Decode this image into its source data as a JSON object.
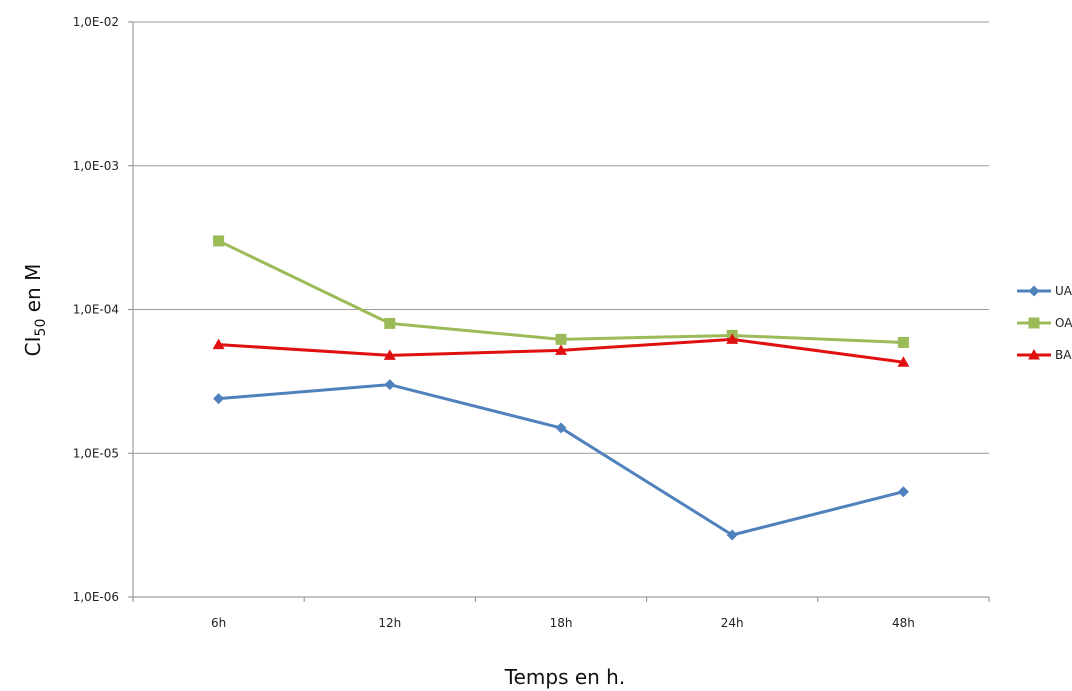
{
  "chart_data": {
    "type": "line",
    "categories": [
      "6h",
      "12h",
      "18h",
      "24h",
      "48h"
    ],
    "xlabel": "Temps en h.",
    "ylabel": {
      "main": "CI",
      "sub": "50",
      "suffix": " en M"
    },
    "y_scale": "log",
    "ylim": [
      1e-06,
      0.01
    ],
    "y_ticks": [
      {
        "value": 0.01,
        "label": "1,0E-02"
      },
      {
        "value": 0.001,
        "label": "1,0E-03"
      },
      {
        "value": 0.0001,
        "label": "1,0E-04"
      },
      {
        "value": 1e-05,
        "label": "1,0E-05"
      },
      {
        "value": 1e-06,
        "label": "1,0E-06"
      }
    ],
    "grid": true,
    "legend_position": "right",
    "series": [
      {
        "name": "UA",
        "color": "#4f81bd",
        "marker": "diamond",
        "values": [
          2.4e-05,
          3e-05,
          1.5e-05,
          2.7e-06,
          5.4e-06
        ]
      },
      {
        "name": "OA",
        "color": "#9bbb59",
        "marker": "square",
        "values": [
          0.0003,
          8e-05,
          6.2e-05,
          6.6e-05,
          5.9e-05
        ]
      },
      {
        "name": "BA",
        "color": "#e01010",
        "marker": "triangle",
        "values": [
          5.7e-05,
          4.8e-05,
          5.2e-05,
          6.2e-05,
          4.3e-05
        ]
      }
    ]
  }
}
